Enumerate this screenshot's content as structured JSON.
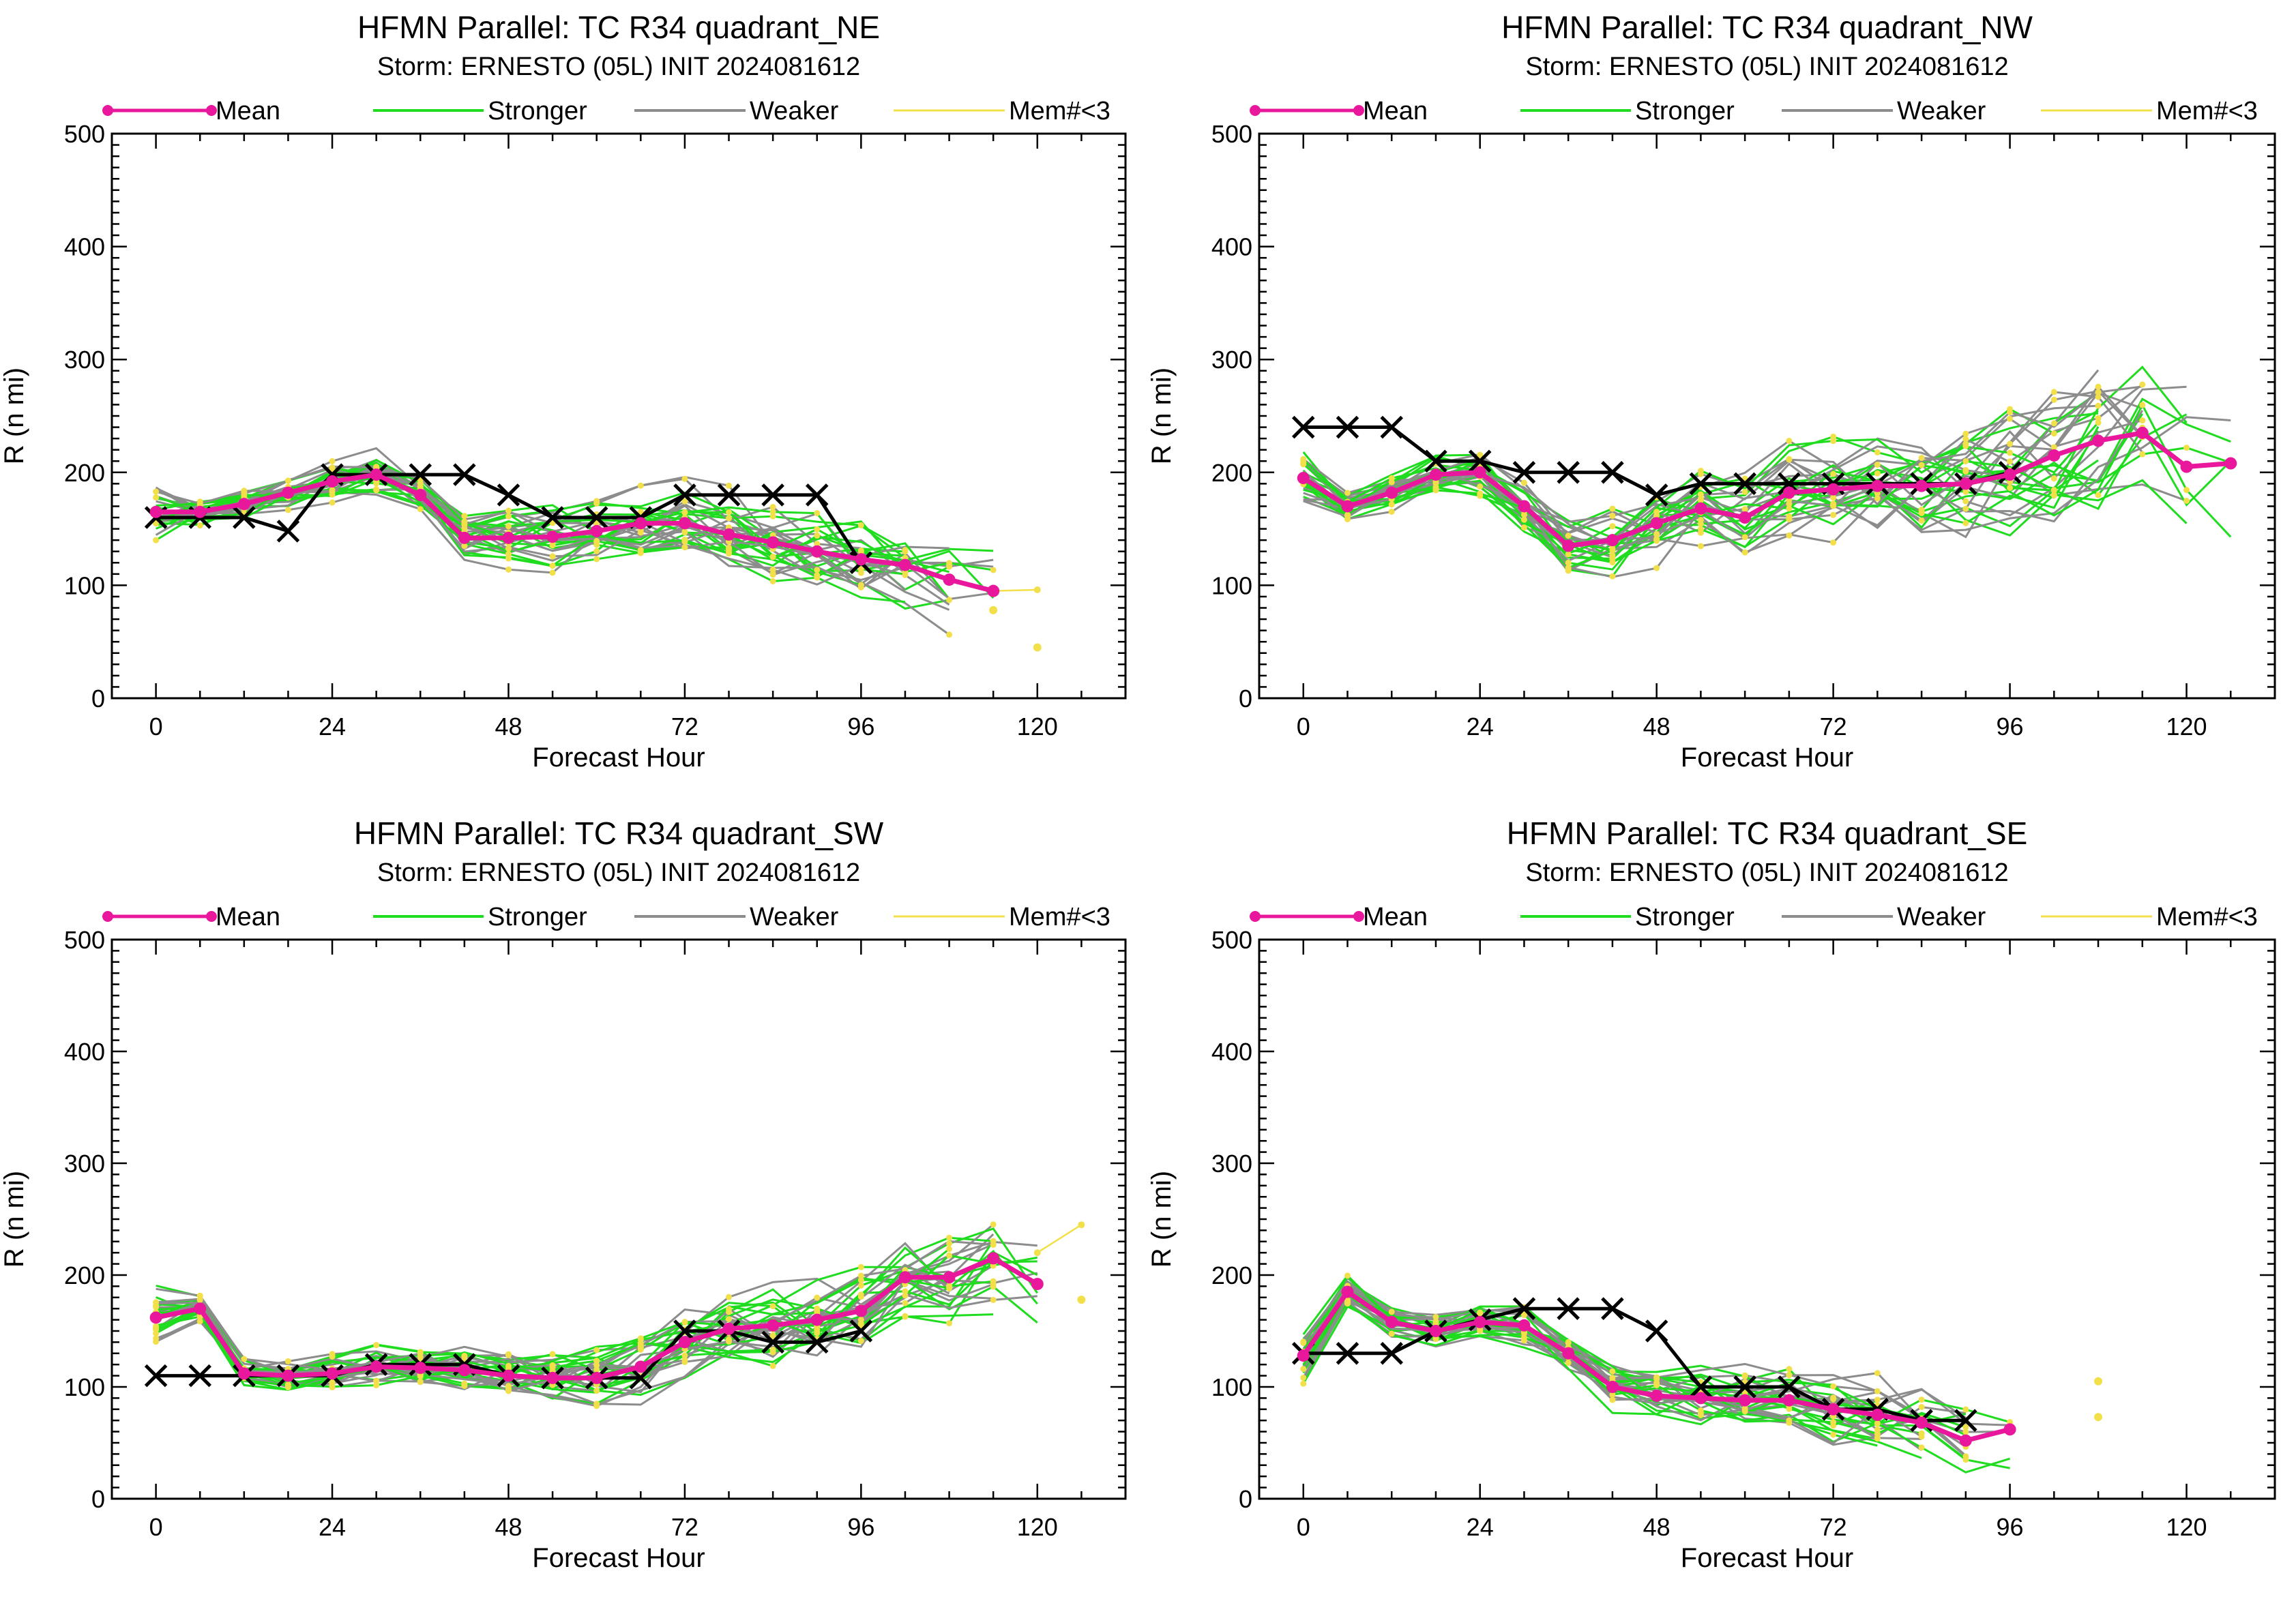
{
  "colors": {
    "mean": "#e8179c",
    "stronger": "#1fdc1f",
    "weaker": "#8c8c8c",
    "few_members": "#f2e04a",
    "best_track": "#000000"
  },
  "legend": {
    "mean": "Mean",
    "stronger": "Stronger",
    "weaker": "Weaker",
    "few_members": "Mem#<3"
  },
  "chart_data": [
    {
      "type": "line",
      "title": "HFMN Parallel: TC  R34 quadrant_NE",
      "subtitle": "Storm: ERNESTO (05L) INIT 2024081612",
      "xlabel": "Forecast Hour",
      "ylabel": "R (n mi)",
      "xlim": [
        -6,
        132
      ],
      "ylim": [
        0,
        500
      ],
      "xticks": [
        0,
        24,
        48,
        72,
        96,
        120
      ],
      "yticks": [
        0,
        100,
        200,
        300,
        400,
        500
      ],
      "legend_position": "top",
      "series": [
        {
          "name": "Mean",
          "x": [
            0,
            6,
            12,
            18,
            24,
            30,
            36,
            42,
            48,
            54,
            60,
            66,
            72,
            78,
            84,
            90,
            96,
            102,
            108,
            114
          ],
          "y": [
            165,
            165,
            172,
            182,
            192,
            198,
            180,
            142,
            142,
            143,
            148,
            155,
            155,
            145,
            138,
            130,
            123,
            118,
            105,
            95
          ]
        },
        {
          "name": "Best track",
          "x": [
            0,
            6,
            12,
            18,
            24,
            30,
            36,
            42,
            48,
            54,
            60,
            66,
            72,
            78,
            84,
            90,
            96
          ],
          "y": [
            160,
            160,
            160,
            148,
            198,
            198,
            198,
            198,
            180,
            160,
            160,
            160,
            180,
            180,
            180,
            180,
            120
          ]
        },
        {
          "name": "Mem#<3",
          "x": [
            108,
            114,
            120
          ],
          "y": [
            105,
            95,
            96
          ]
        }
      ],
      "member_points": [
        [
          120,
          45
        ],
        [
          114,
          78
        ]
      ]
    },
    {
      "type": "line",
      "title": "HFMN Parallel: TC  R34 quadrant_NW",
      "subtitle": "Storm: ERNESTO (05L) INIT 2024081612",
      "xlabel": "Forecast Hour",
      "ylabel": "R (n mi)",
      "xlim": [
        -6,
        132
      ],
      "ylim": [
        0,
        500
      ],
      "xticks": [
        0,
        24,
        48,
        72,
        96,
        120
      ],
      "yticks": [
        0,
        100,
        200,
        300,
        400,
        500
      ],
      "legend_position": "top",
      "series": [
        {
          "name": "Mean",
          "x": [
            0,
            6,
            12,
            18,
            24,
            30,
            36,
            42,
            48,
            54,
            60,
            66,
            72,
            78,
            84,
            90,
            96,
            102,
            108,
            114,
            120,
            126
          ],
          "y": [
            195,
            170,
            182,
            198,
            200,
            170,
            135,
            140,
            155,
            168,
            160,
            182,
            185,
            188,
            188,
            190,
            198,
            215,
            228,
            235,
            205,
            208
          ]
        },
        {
          "name": "Best track",
          "x": [
            0,
            6,
            12,
            18,
            24,
            30,
            36,
            42,
            48,
            54,
            60,
            66,
            72,
            78,
            84,
            90,
            96
          ],
          "y": [
            240,
            240,
            240,
            210,
            210,
            200,
            200,
            200,
            180,
            190,
            190,
            190,
            190,
            190,
            190,
            190,
            200
          ]
        }
      ],
      "member_points": []
    },
    {
      "type": "line",
      "title": "HFMN Parallel: TC  R34 quadrant_SW",
      "subtitle": "Storm: ERNESTO (05L) INIT 2024081612",
      "xlabel": "Forecast Hour",
      "ylabel": "R (n mi)",
      "xlim": [
        -6,
        132
      ],
      "ylim": [
        0,
        500
      ],
      "xticks": [
        0,
        24,
        48,
        72,
        96,
        120
      ],
      "yticks": [
        0,
        100,
        200,
        300,
        400,
        500
      ],
      "legend_position": "top",
      "series": [
        {
          "name": "Mean",
          "x": [
            0,
            6,
            12,
            18,
            24,
            30,
            36,
            42,
            48,
            54,
            60,
            66,
            72,
            78,
            84,
            90,
            96,
            102,
            108,
            114,
            120
          ],
          "y": [
            162,
            170,
            112,
            110,
            112,
            118,
            117,
            115,
            110,
            108,
            108,
            118,
            140,
            152,
            155,
            160,
            168,
            198,
            198,
            215,
            192
          ]
        },
        {
          "name": "Best track",
          "x": [
            0,
            6,
            12,
            18,
            24,
            30,
            36,
            42,
            48,
            54,
            60,
            66,
            72,
            78,
            84,
            90,
            96
          ],
          "y": [
            110,
            110,
            110,
            110,
            110,
            120,
            120,
            120,
            110,
            108,
            108,
            108,
            150,
            150,
            140,
            140,
            150
          ]
        },
        {
          "name": "Mem#<3",
          "x": [
            120,
            126
          ],
          "y": [
            220,
            245
          ]
        }
      ],
      "member_points": [
        [
          126,
          178
        ]
      ]
    },
    {
      "type": "line",
      "title": "HFMN Parallel: TC  R34 quadrant_SE",
      "subtitle": "Storm: ERNESTO (05L) INIT 2024081612",
      "xlabel": "Forecast Hour",
      "ylabel": "R (n mi)",
      "xlim": [
        -6,
        132
      ],
      "ylim": [
        0,
        500
      ],
      "xticks": [
        0,
        24,
        48,
        72,
        96,
        120
      ],
      "yticks": [
        0,
        100,
        200,
        300,
        400,
        500
      ],
      "legend_position": "top",
      "series": [
        {
          "name": "Mean",
          "x": [
            0,
            6,
            12,
            18,
            24,
            30,
            36,
            42,
            48,
            54,
            60,
            66,
            72,
            78,
            84,
            90,
            96
          ],
          "y": [
            128,
            185,
            158,
            150,
            158,
            155,
            130,
            100,
            92,
            90,
            88,
            88,
            80,
            75,
            68,
            52,
            62
          ]
        },
        {
          "name": "Best track",
          "x": [
            0,
            6,
            12,
            18,
            24,
            30,
            36,
            42,
            48,
            54,
            60,
            66,
            72,
            78,
            84,
            90
          ],
          "y": [
            130,
            130,
            130,
            150,
            160,
            170,
            170,
            170,
            150,
            100,
            100,
            100,
            80,
            80,
            70,
            70
          ]
        }
      ],
      "member_points": [
        [
          108,
          105
        ],
        [
          108,
          73
        ]
      ]
    }
  ]
}
